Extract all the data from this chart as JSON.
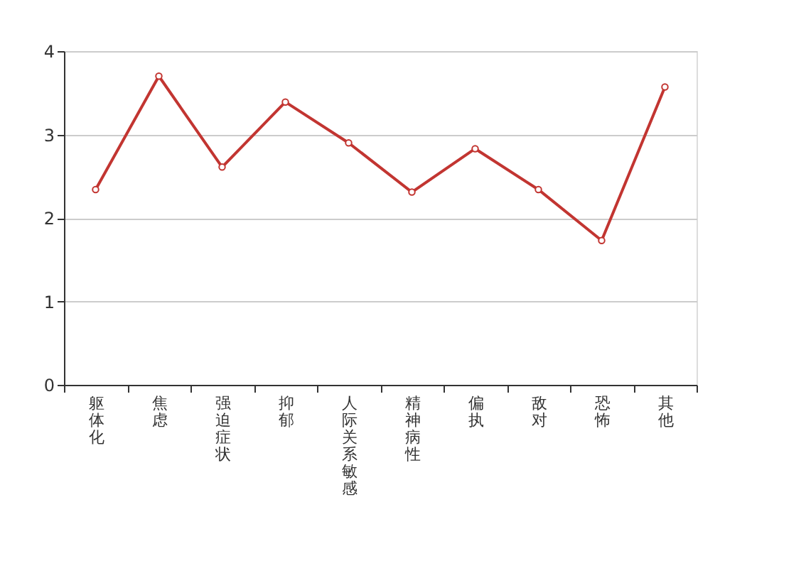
{
  "chart_data": {
    "type": "line",
    "categories": [
      "躯体化",
      "焦虑",
      "强迫症状",
      "抑郁",
      "人际关系敏感",
      "精神病性",
      "偏执",
      "敌对",
      "恐怖",
      "其他"
    ],
    "series": [
      {
        "color": "#c23531",
        "values": [
          2.34,
          3.7,
          2.61,
          3.39,
          2.9,
          2.31,
          2.83,
          2.34,
          1.73,
          3.57
        ]
      }
    ],
    "ylim": [
      0,
      4
    ],
    "yticks": [
      0,
      1,
      2,
      3,
      4
    ],
    "grid": "y",
    "marker": "circle"
  }
}
